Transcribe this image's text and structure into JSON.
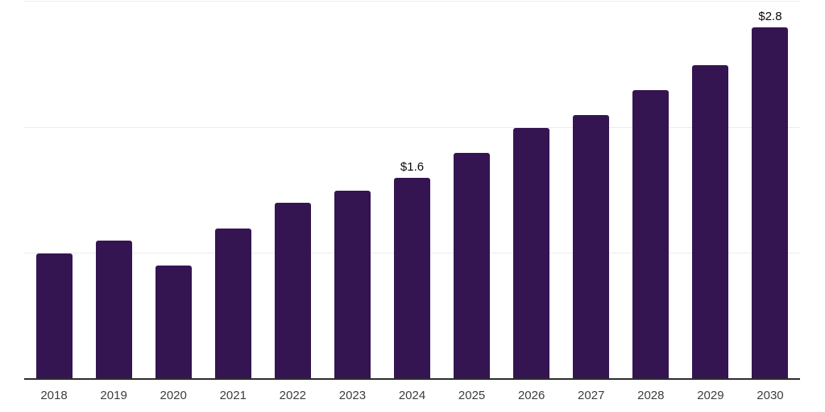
{
  "chart_data": {
    "type": "bar",
    "title": "",
    "xlabel": "",
    "ylabel": "",
    "categories": [
      "2018",
      "2019",
      "2020",
      "2021",
      "2022",
      "2023",
      "2024",
      "2025",
      "2026",
      "2027",
      "2028",
      "2029",
      "2030"
    ],
    "values": [
      1.0,
      1.1,
      0.9,
      1.2,
      1.4,
      1.5,
      1.6,
      1.8,
      2.0,
      2.1,
      2.3,
      2.5,
      2.8
    ],
    "data_labels": {
      "2024": "$1.6",
      "2030": "$2.8"
    },
    "ylim": [
      0,
      3.0
    ],
    "gridline_values": [
      1.0,
      2.0,
      3.0
    ],
    "grid": "horizontal",
    "legend": "none",
    "colors": {
      "bar": "#341551",
      "axis_line": "#2d2d2d",
      "gridline": "#ededed",
      "data_label": "#0a0a0a",
      "tick_label": "#3d3d3d",
      "background": "#ffffff"
    }
  }
}
